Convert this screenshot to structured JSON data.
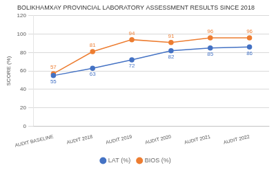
{
  "chart_data": {
    "type": "line",
    "title": "BOLIKHAMXAY PROVINCIAL LABORATORY ASSESSMENT RESULTS SINCE 2018",
    "ylabel": "SCORE (%)",
    "categories": [
      "AUDIT BASELINE",
      "AUDIT 2018",
      "AUDIT 2019",
      "AUDIT 2020",
      "AUDIT 2021",
      "AUDIT 2022"
    ],
    "series": [
      {
        "name": "LAT (%)",
        "color": "#4472C4",
        "marker": "circle",
        "values": [
          55,
          63,
          72,
          82,
          85,
          86
        ]
      },
      {
        "name": "BIOS (%)",
        "color": "#ED7D31",
        "marker": "circle",
        "values": [
          57,
          81,
          94,
          91,
          96,
          96
        ]
      }
    ],
    "ylim": [
      0,
      120
    ],
    "yticks": [
      0,
      20,
      40,
      60,
      80,
      100,
      120
    ],
    "grid": true,
    "legend": "bottom",
    "data_labels": true
  }
}
